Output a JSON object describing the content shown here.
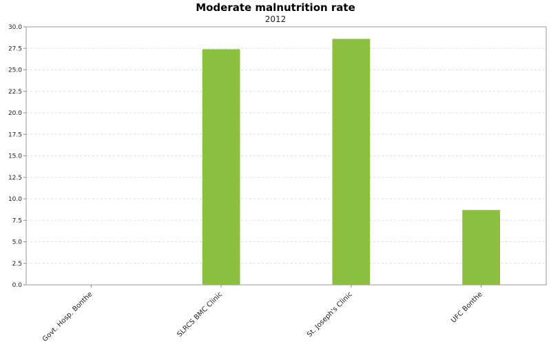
{
  "chart_data": {
    "type": "bar",
    "title": "Moderate malnutrition rate",
    "subtitle": "2012",
    "categories": [
      "Govt. Hosp. Bonthe",
      "SLRCS BMC Clinic",
      "St. Joseph's Clinic",
      "UFC Bonthe"
    ],
    "values": [
      0,
      27.4,
      28.6,
      8.7
    ],
    "ylim": [
      0,
      30
    ],
    "yticks": [
      "0.0",
      "2.5",
      "5.0",
      "7.5",
      "10.0",
      "12.5",
      "15.0",
      "17.5",
      "20.0",
      "22.5",
      "25.0",
      "27.5",
      "30.0"
    ],
    "xlabel": "",
    "ylabel": "",
    "grid": true,
    "bar_color": "#8bbf3f"
  }
}
